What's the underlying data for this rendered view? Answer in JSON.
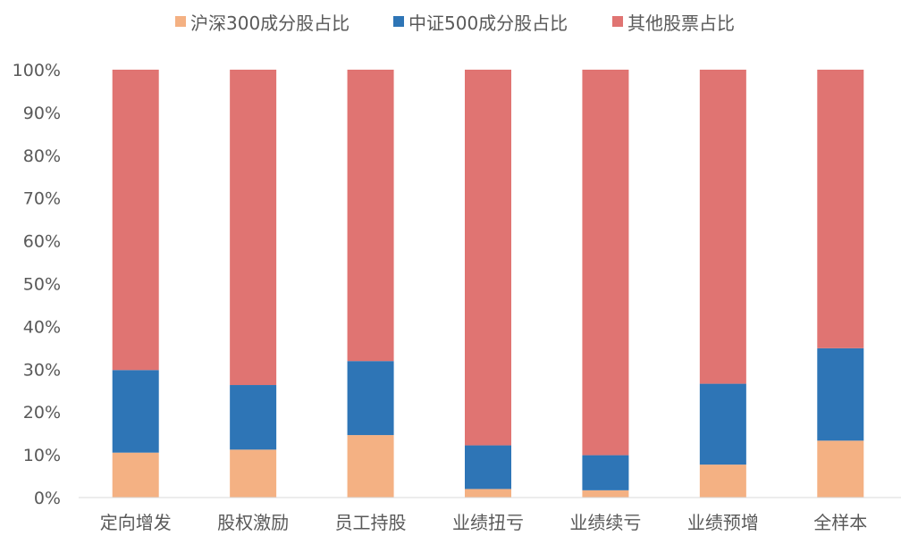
{
  "chart_data": {
    "type": "bar",
    "stacked": true,
    "categories": [
      "定向增发",
      "股权激励",
      "员工持股",
      "业绩扭亏",
      "业绩续亏",
      "业绩预增",
      "全样本"
    ],
    "series": [
      {
        "name": "沪深300成分股占比",
        "color": "#F4B183",
        "values": [
          10.5,
          11.2,
          14.6,
          2.0,
          1.7,
          7.7,
          13.3
        ]
      },
      {
        "name": "中证500成分股占比",
        "color": "#2E75B6",
        "values": [
          19.3,
          15.1,
          17.3,
          10.2,
          8.2,
          18.9,
          21.6
        ]
      },
      {
        "name": "其他股票占比",
        "color": "#E07472",
        "values": [
          70.2,
          73.7,
          68.1,
          87.8,
          90.1,
          73.4,
          65.1
        ]
      }
    ],
    "ylim": [
      0,
      100
    ],
    "yticks": [
      "0%",
      "10%",
      "20%",
      "30%",
      "40%",
      "50%",
      "60%",
      "70%",
      "80%",
      "90%",
      "100%"
    ],
    "legend_position": "top-center",
    "grid": false
  }
}
